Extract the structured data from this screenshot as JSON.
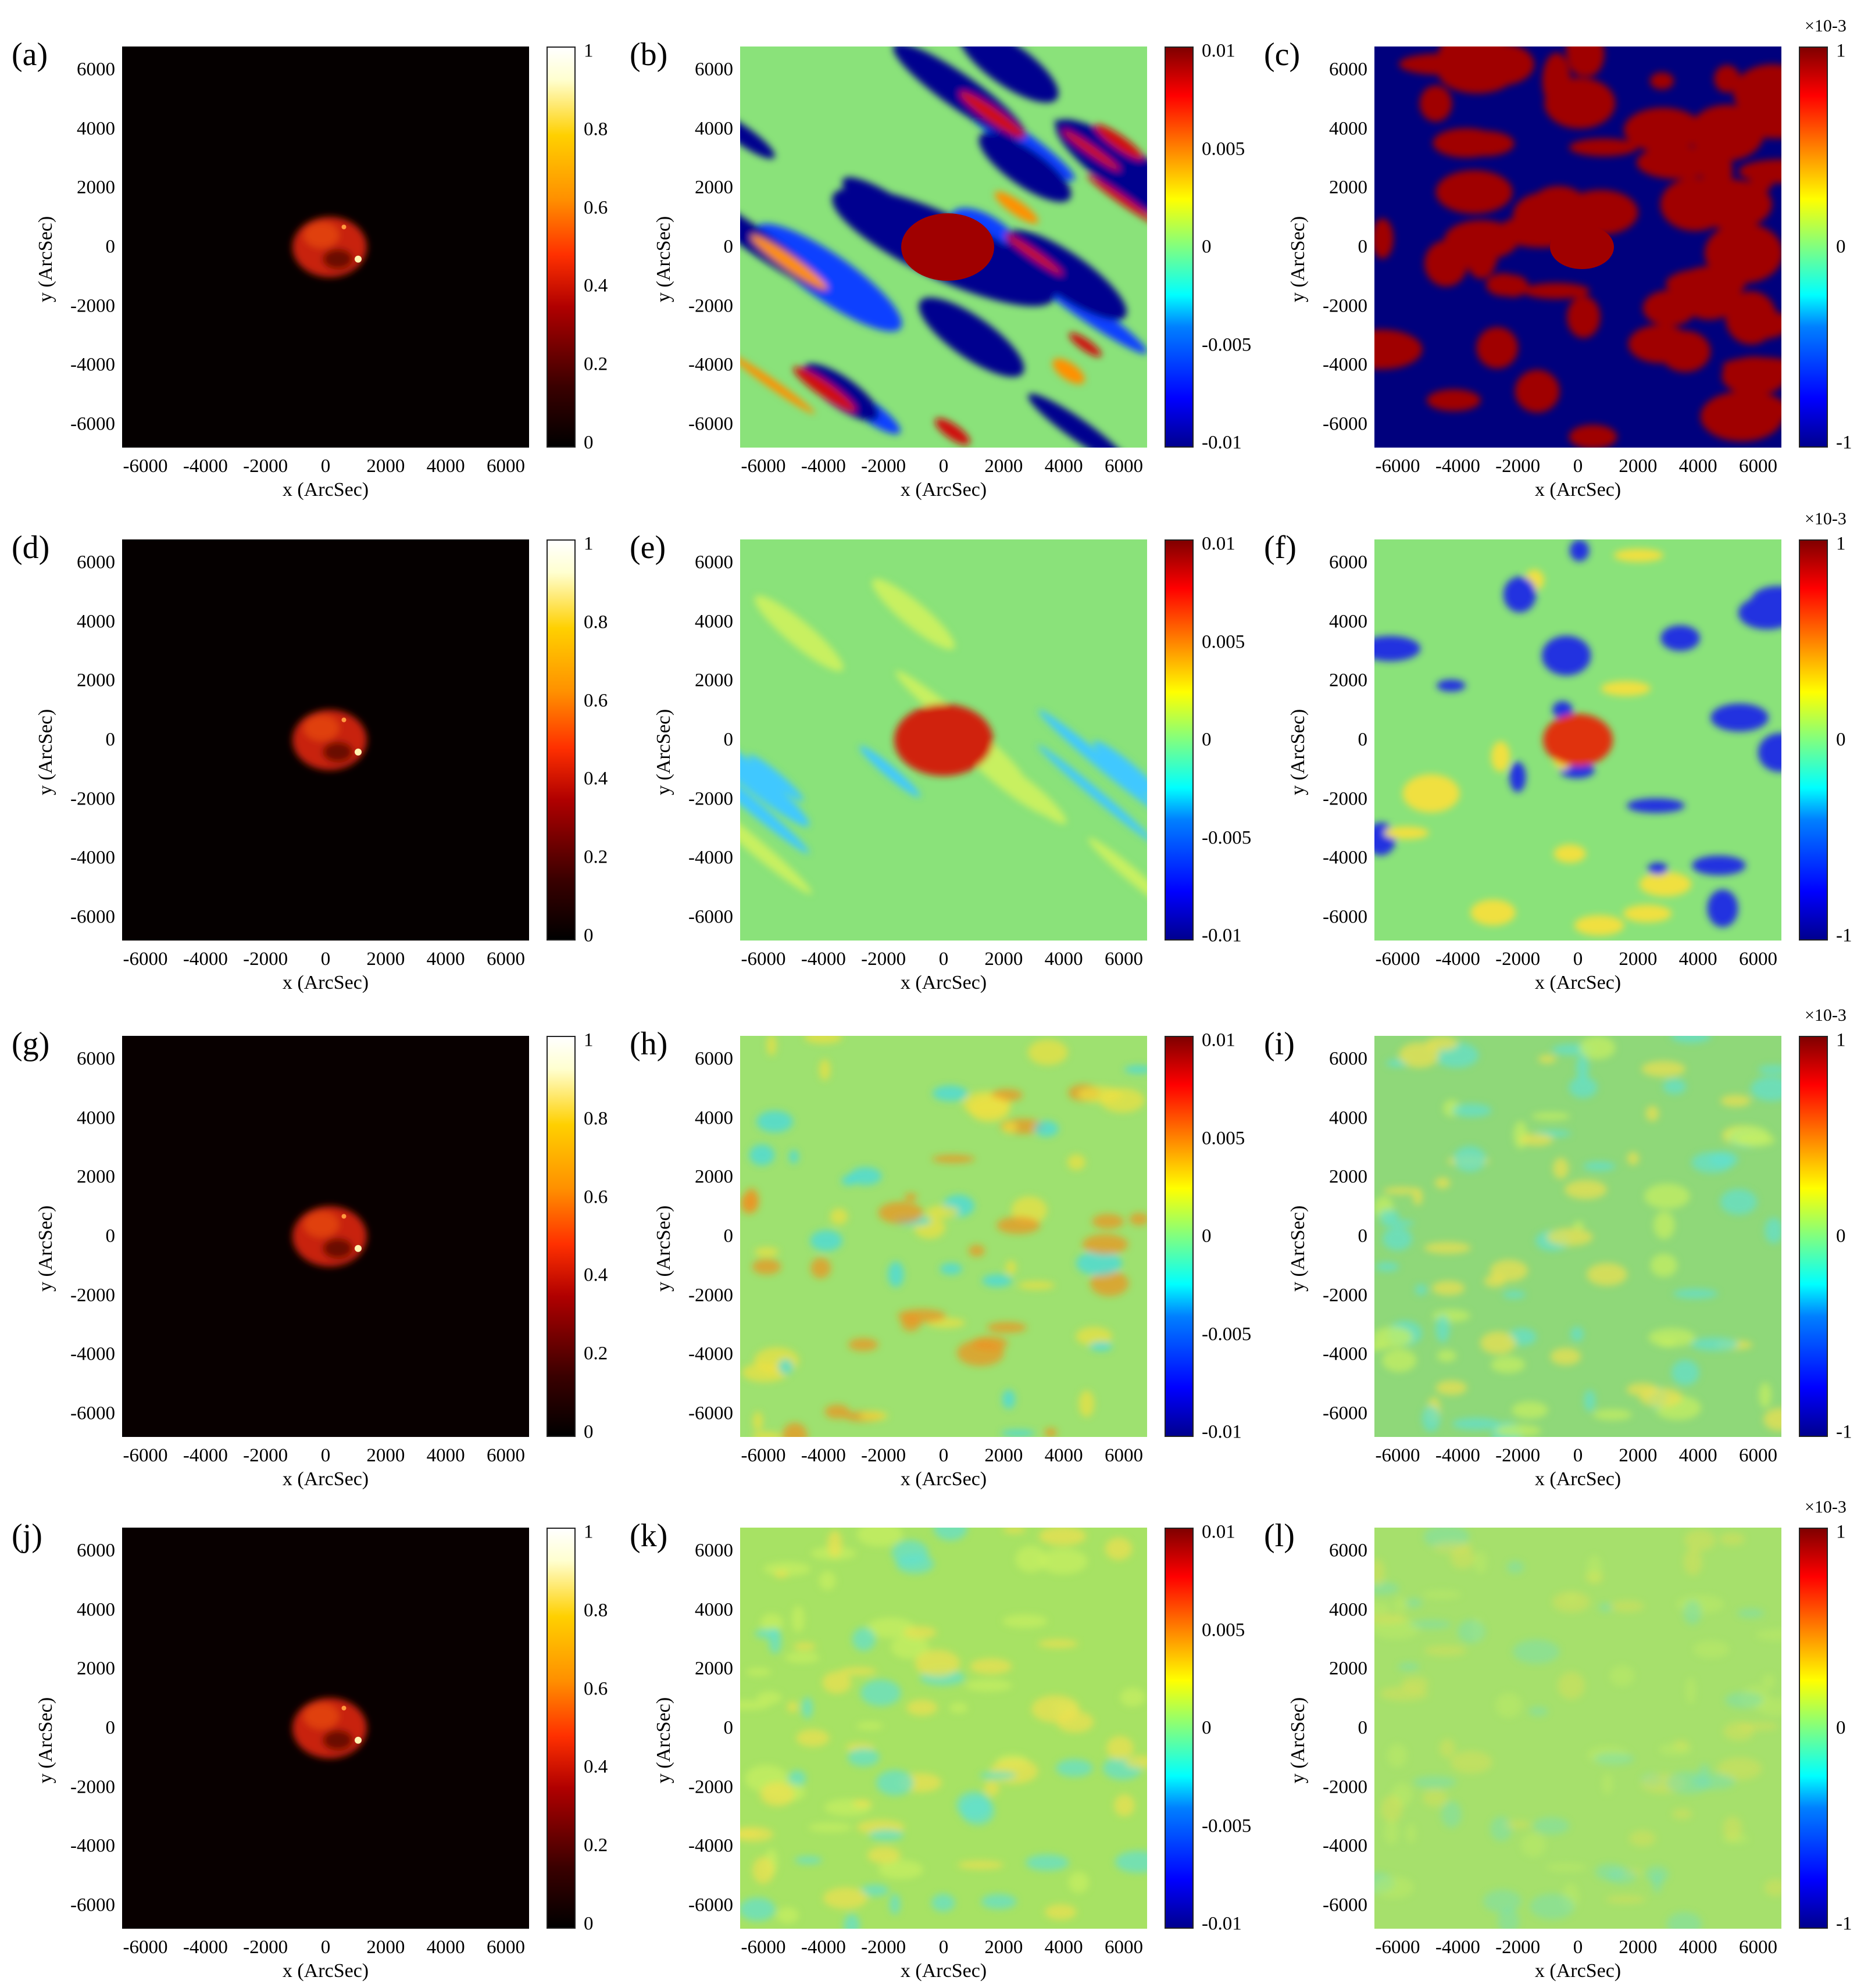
{
  "chart_data": [
    {
      "panel": "(a)",
      "type": "heatmap",
      "xlabel": "x (ArcSec)",
      "ylabel": "y (ArcSec)",
      "xticks": [
        "-6000",
        "-4000",
        "-2000",
        "0",
        "2000",
        "4000",
        "6000"
      ],
      "yticks": [
        "6000",
        "4000",
        "2000",
        "0",
        "-2000",
        "-4000",
        "-6000"
      ],
      "colormap": "hot",
      "colorbar": {
        "ticks": [
          "1",
          "0.8",
          "0.6",
          "0.4",
          "0.2",
          "0"
        ],
        "range": [
          0,
          1
        ]
      }
    },
    {
      "panel": "(b)",
      "type": "heatmap",
      "xlabel": "x (ArcSec)",
      "ylabel": "y (ArcSec)",
      "xticks": [
        "-6000",
        "-4000",
        "-2000",
        "0",
        "2000",
        "4000",
        "6000"
      ],
      "yticks": [
        "6000",
        "4000",
        "2000",
        "0",
        "-2000",
        "-4000",
        "-6000"
      ],
      "colormap": "jet",
      "colorbar": {
        "ticks": [
          "0.01",
          "0.005",
          "0",
          "-0.005",
          "-0.01"
        ],
        "range": [
          -0.01,
          0.01
        ]
      }
    },
    {
      "panel": "(c)",
      "type": "heatmap",
      "xlabel": "x (ArcSec)",
      "ylabel": "y (ArcSec)",
      "xticks": [
        "-6000",
        "-4000",
        "-2000",
        "0",
        "2000",
        "4000",
        "6000"
      ],
      "yticks": [
        "6000",
        "4000",
        "2000",
        "0",
        "-2000",
        "-4000",
        "-6000"
      ],
      "colormap": "jet",
      "colorbar": {
        "ticks": [
          "1",
          "0",
          "-1"
        ],
        "range": [
          -1,
          1
        ],
        "exponent": "×10-3"
      }
    },
    {
      "panel": "(d)",
      "type": "heatmap",
      "xlabel": "x (ArcSec)",
      "ylabel": "y (ArcSec)",
      "xticks": [
        "-6000",
        "-4000",
        "-2000",
        "0",
        "2000",
        "4000",
        "6000"
      ],
      "yticks": [
        "6000",
        "4000",
        "2000",
        "0",
        "-2000",
        "-4000",
        "-6000"
      ],
      "colormap": "hot",
      "colorbar": {
        "ticks": [
          "1",
          "0.8",
          "0.6",
          "0.4",
          "0.2",
          "0"
        ],
        "range": [
          0,
          1
        ]
      }
    },
    {
      "panel": "(e)",
      "type": "heatmap",
      "xlabel": "x (ArcSec)",
      "ylabel": "y (ArcSec)",
      "xticks": [
        "-6000",
        "-4000",
        "-2000",
        "0",
        "2000",
        "4000",
        "6000"
      ],
      "yticks": [
        "6000",
        "4000",
        "2000",
        "0",
        "-2000",
        "-4000",
        "-6000"
      ],
      "colormap": "jet",
      "colorbar": {
        "ticks": [
          "0.01",
          "0.005",
          "0",
          "-0.005",
          "-0.01"
        ],
        "range": [
          -0.01,
          0.01
        ]
      }
    },
    {
      "panel": "(f)",
      "type": "heatmap",
      "xlabel": "x (ArcSec)",
      "ylabel": "y (ArcSec)",
      "xticks": [
        "-6000",
        "-4000",
        "-2000",
        "0",
        "2000",
        "4000",
        "6000"
      ],
      "yticks": [
        "6000",
        "4000",
        "2000",
        "0",
        "-2000",
        "-4000",
        "-6000"
      ],
      "colormap": "jet",
      "colorbar": {
        "ticks": [
          "1",
          "0",
          "-1"
        ],
        "range": [
          -1,
          1
        ],
        "exponent": "×10-3"
      }
    },
    {
      "panel": "(g)",
      "type": "heatmap",
      "xlabel": "x (ArcSec)",
      "ylabel": "y (ArcSec)",
      "xticks": [
        "-6000",
        "-4000",
        "-2000",
        "0",
        "2000",
        "4000",
        "6000"
      ],
      "yticks": [
        "6000",
        "4000",
        "2000",
        "0",
        "-2000",
        "-4000",
        "-6000"
      ],
      "colormap": "hot",
      "colorbar": {
        "ticks": [
          "1",
          "0.8",
          "0.6",
          "0.4",
          "0.2",
          "0"
        ],
        "range": [
          0,
          1
        ]
      }
    },
    {
      "panel": "(h)",
      "type": "heatmap",
      "xlabel": "x (ArcSec)",
      "ylabel": "y (ArcSec)",
      "xticks": [
        "-6000",
        "-4000",
        "-2000",
        "0",
        "2000",
        "4000",
        "6000"
      ],
      "yticks": [
        "6000",
        "4000",
        "2000",
        "0",
        "-2000",
        "-4000",
        "-6000"
      ],
      "colormap": "jet",
      "colorbar": {
        "ticks": [
          "0.01",
          "0.005",
          "0",
          "-0.005",
          "-0.01"
        ],
        "range": [
          -0.01,
          0.01
        ]
      }
    },
    {
      "panel": "(i)",
      "type": "heatmap",
      "xlabel": "x (ArcSec)",
      "ylabel": "y (ArcSec)",
      "xticks": [
        "-6000",
        "-4000",
        "-2000",
        "0",
        "2000",
        "4000",
        "6000"
      ],
      "yticks": [
        "6000",
        "4000",
        "2000",
        "0",
        "-2000",
        "-4000",
        "-6000"
      ],
      "colormap": "jet",
      "colorbar": {
        "ticks": [
          "1",
          "0",
          "-1"
        ],
        "range": [
          -1,
          1
        ],
        "exponent": "×10-3"
      }
    },
    {
      "panel": "(j)",
      "type": "heatmap",
      "xlabel": "x (ArcSec)",
      "ylabel": "y (ArcSec)",
      "xticks": [
        "-6000",
        "-4000",
        "-2000",
        "0",
        "2000",
        "4000",
        "6000"
      ],
      "yticks": [
        "6000",
        "4000",
        "2000",
        "0",
        "-2000",
        "-4000",
        "-6000"
      ],
      "colormap": "hot",
      "colorbar": {
        "ticks": [
          "1",
          "0.8",
          "0.6",
          "0.4",
          "0.2",
          "0"
        ],
        "range": [
          0,
          1
        ]
      }
    },
    {
      "panel": "(k)",
      "type": "heatmap",
      "xlabel": "x (ArcSec)",
      "ylabel": "y (ArcSec)",
      "xticks": [
        "-6000",
        "-4000",
        "-2000",
        "0",
        "2000",
        "4000",
        "6000"
      ],
      "yticks": [
        "6000",
        "4000",
        "2000",
        "0",
        "-2000",
        "-4000",
        "-6000"
      ],
      "colormap": "jet",
      "colorbar": {
        "ticks": [
          "0.01",
          "0.005",
          "0",
          "-0.005",
          "-0.01"
        ],
        "range": [
          -0.01,
          0.01
        ]
      }
    },
    {
      "panel": "(l)",
      "type": "heatmap",
      "xlabel": "x (ArcSec)",
      "ylabel": "y (ArcSec)",
      "xticks": [
        "-6000",
        "-4000",
        "-2000",
        "0",
        "2000",
        "4000",
        "6000"
      ],
      "yticks": [
        "6000",
        "4000",
        "2000",
        "0",
        "-2000",
        "-4000",
        "-6000"
      ],
      "colormap": "jet",
      "colorbar": {
        "ticks": [
          "1",
          "0",
          "-1"
        ],
        "range": [
          -1,
          1
        ],
        "exponent": "×10-3"
      }
    }
  ]
}
